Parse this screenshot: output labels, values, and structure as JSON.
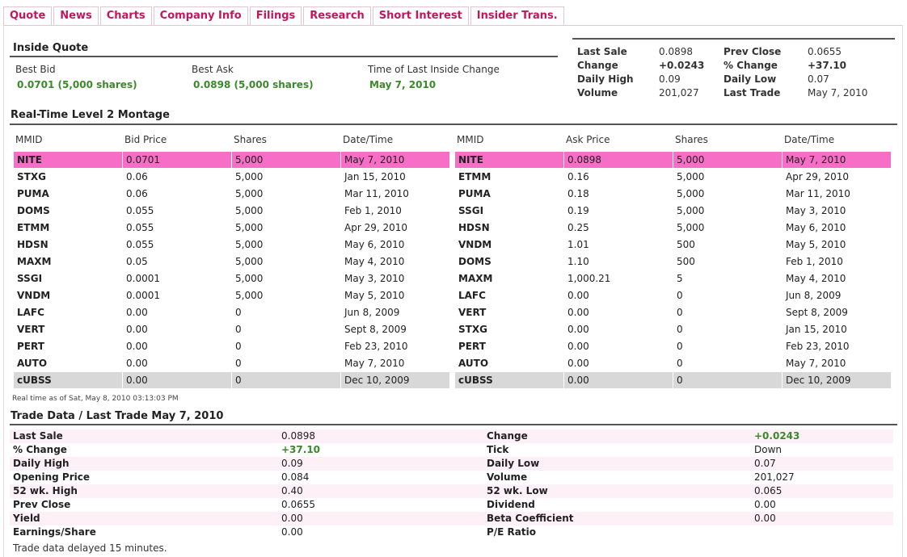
{
  "tabs": [
    "Quote",
    "News",
    "Charts",
    "Company Info",
    "Filings",
    "Research",
    "Short Interest",
    "Insider Trans."
  ],
  "inside_quote": {
    "title": "Inside Quote",
    "best_bid_label": "Best Bid",
    "best_bid_value": "0.0701 (5,000 shares)",
    "best_ask_label": "Best Ask",
    "best_ask_value": "0.0898 (5,000 shares)",
    "time_label": "Time of Last Inside Change",
    "time_value": "May 7, 2010"
  },
  "summary": {
    "left": [
      {
        "label": "Last Sale",
        "value": "0.0898",
        "green": false
      },
      {
        "label": "Change",
        "value": "+0.0243",
        "green": true
      },
      {
        "label": "Daily High",
        "value": "0.09",
        "green": false
      },
      {
        "label": "Volume",
        "value": "201,027",
        "green": false
      }
    ],
    "right": [
      {
        "label": "Prev Close",
        "value": "0.0655",
        "green": false
      },
      {
        "label": "% Change",
        "value": "+37.10",
        "green": true
      },
      {
        "label": "Daily Low",
        "value": "0.07",
        "green": false
      },
      {
        "label": "Last Trade",
        "value": "May 7, 2010",
        "green": false
      }
    ]
  },
  "montage": {
    "title": "Real-Time Level 2 Montage",
    "bid_headers": [
      "MMID",
      "Bid Price",
      "Shares",
      "Date/Time"
    ],
    "ask_headers": [
      "MMID",
      "Ask Price",
      "Shares",
      "Date/Time"
    ],
    "bids": [
      [
        "NITE",
        "0.0701",
        "5,000",
        "May 7, 2010"
      ],
      [
        "STXG",
        "0.06",
        "5,000",
        "Jan 15, 2010"
      ],
      [
        "PUMA",
        "0.06",
        "5,000",
        "Mar 11, 2010"
      ],
      [
        "DOMS",
        "0.055",
        "5,000",
        "Feb 1, 2010"
      ],
      [
        "ETMM",
        "0.055",
        "5,000",
        "Apr 29, 2010"
      ],
      [
        "HDSN",
        "0.055",
        "5,000",
        "May 6, 2010"
      ],
      [
        "MAXM",
        "0.05",
        "5,000",
        "May 4, 2010"
      ],
      [
        "SSGI",
        "0.0001",
        "5,000",
        "May 3, 2010"
      ],
      [
        "VNDM",
        "0.0001",
        "5,000",
        "May 5, 2010"
      ],
      [
        "LAFC",
        "0.00",
        "0",
        "Jun 8, 2009"
      ],
      [
        "VERT",
        "0.00",
        "0",
        "Sept 8, 2009"
      ],
      [
        "PERT",
        "0.00",
        "0",
        "Feb 23, 2010"
      ],
      [
        "AUTO",
        "0.00",
        "0",
        "May 7, 2010"
      ],
      [
        "cUBSS",
        "0.00",
        "0",
        "Dec 10, 2009"
      ]
    ],
    "asks": [
      [
        "NITE",
        "0.0898",
        "5,000",
        "May 7, 2010"
      ],
      [
        "ETMM",
        "0.16",
        "5,000",
        "Apr 29, 2010"
      ],
      [
        "PUMA",
        "0.18",
        "5,000",
        "Mar 11, 2010"
      ],
      [
        "SSGI",
        "0.19",
        "5,000",
        "May 3, 2010"
      ],
      [
        "HDSN",
        "0.25",
        "5,000",
        "May 6, 2010"
      ],
      [
        "VNDM",
        "1.01",
        "500",
        "May 5, 2010"
      ],
      [
        "DOMS",
        "1.10",
        "500",
        "Feb 1, 2010"
      ],
      [
        "MAXM",
        "1,000.21",
        "5",
        "May 4, 2010"
      ],
      [
        "LAFC",
        "0.00",
        "0",
        "Jun 8, 2009"
      ],
      [
        "VERT",
        "0.00",
        "0",
        "Sept 8, 2009"
      ],
      [
        "STXG",
        "0.00",
        "0",
        "Jan 15, 2010"
      ],
      [
        "PERT",
        "0.00",
        "0",
        "Feb 23, 2010"
      ],
      [
        "AUTO",
        "0.00",
        "0",
        "May 7, 2010"
      ],
      [
        "cUBSS",
        "0.00",
        "0",
        "Dec 10, 2009"
      ]
    ],
    "realtime_note": "Real time as of Sat, May 8, 2010 03:13:03 PM"
  },
  "trade_data": {
    "title": "Trade Data / Last Trade May 7, 2010",
    "rows": [
      {
        "l_label": "Last Sale",
        "l_value": "0.0898",
        "l_green": false,
        "r_label": "Change",
        "r_value": "+0.0243",
        "r_green": true
      },
      {
        "l_label": "% Change",
        "l_value": "+37.10",
        "l_green": true,
        "r_label": "Tick",
        "r_value": "Down",
        "r_green": false
      },
      {
        "l_label": "Daily High",
        "l_value": "0.09",
        "l_green": false,
        "r_label": "Daily Low",
        "r_value": "0.07",
        "r_green": false
      },
      {
        "l_label": "Opening Price",
        "l_value": "0.084",
        "l_green": false,
        "r_label": "Volume",
        "r_value": "201,027",
        "r_green": false
      },
      {
        "l_label": "52 wk. High",
        "l_value": "0.40",
        "l_green": false,
        "r_label": "52 wk. Low",
        "r_value": "0.065",
        "r_green": false
      },
      {
        "l_label": "Prev Close",
        "l_value": "0.0655",
        "l_green": false,
        "r_label": "Dividend",
        "r_value": "0.00",
        "r_green": false
      },
      {
        "l_label": "Yield",
        "l_value": "0.00",
        "l_green": false,
        "r_label": "Beta Coefficient",
        "r_value": "0.00",
        "r_green": false
      },
      {
        "l_label": "Earnings/Share",
        "l_value": "0.00",
        "l_green": false,
        "r_label": "P/E Ratio",
        "r_value": "",
        "r_green": false
      }
    ],
    "delay_note": "Trade data delayed 15 minutes."
  },
  "colors": {
    "tab_text": "#c2185b",
    "highlight_row": "#f76ec6",
    "inside_row": "#d8d8d8",
    "positive": "#3a8a2a",
    "alt_row": "#fdf0f6"
  }
}
